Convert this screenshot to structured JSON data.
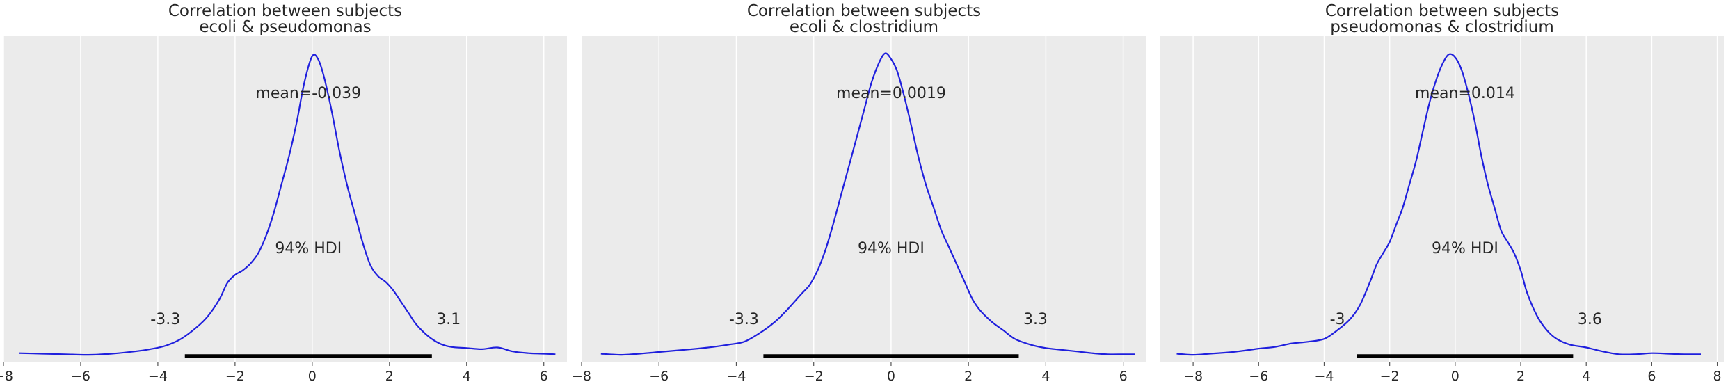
{
  "chart_data": [
    {
      "type": "density",
      "title_lines": [
        "Correlation between subjects",
        "ecoli & pseudomonas"
      ],
      "xlim": [
        -8.0,
        6.6
      ],
      "ylim": [
        -0.01,
        0.56
      ],
      "xticks": [
        -8,
        -6,
        -4,
        -2,
        0,
        2,
        4,
        6
      ],
      "xtick_labels": [
        "−8",
        "−6",
        "−4",
        "−2",
        "0",
        "2",
        "4",
        "6"
      ],
      "grid": true,
      "mean_label": "mean=-0.039",
      "hdi_label": "94% HDI",
      "hdi": [
        -3.3,
        3.1
      ],
      "hdi_low_label": "-3.3",
      "hdi_high_label": "3.1",
      "line_color": "#1f1fdd",
      "density": {
        "x": [
          -7.6,
          -7.0,
          -6.4,
          -5.8,
          -5.2,
          -4.6,
          -4.2,
          -3.8,
          -3.4,
          -3.0,
          -2.7,
          -2.4,
          -2.2,
          -2.0,
          -1.8,
          -1.6,
          -1.4,
          -1.2,
          -1.0,
          -0.8,
          -0.6,
          -0.4,
          -0.2,
          0.0,
          0.15,
          0.3,
          0.5,
          0.7,
          0.9,
          1.1,
          1.3,
          1.5,
          1.7,
          1.9,
          2.1,
          2.3,
          2.5,
          2.7,
          3.0,
          3.3,
          3.6,
          4.0,
          4.4,
          4.8,
          5.2,
          5.6,
          6.0,
          6.3
        ],
        "y": [
          0.005,
          0.004,
          0.003,
          0.002,
          0.004,
          0.008,
          0.012,
          0.018,
          0.03,
          0.05,
          0.07,
          0.1,
          0.128,
          0.142,
          0.15,
          0.162,
          0.18,
          0.21,
          0.25,
          0.3,
          0.35,
          0.41,
          0.48,
          0.525,
          0.52,
          0.49,
          0.43,
          0.36,
          0.3,
          0.25,
          0.2,
          0.16,
          0.14,
          0.13,
          0.115,
          0.095,
          0.075,
          0.055,
          0.035,
          0.022,
          0.016,
          0.014,
          0.012,
          0.015,
          0.008,
          0.005,
          0.004,
          0.003
        ]
      }
    },
    {
      "type": "density",
      "title_lines": [
        "Correlation between subjects",
        "ecoli & clostridium"
      ],
      "xlim": [
        -8.0,
        6.6
      ],
      "ylim": [
        -0.01,
        0.56
      ],
      "xticks": [
        -8,
        -6,
        -4,
        -2,
        0,
        2,
        4,
        6
      ],
      "xtick_labels": [
        "−8",
        "−6",
        "−4",
        "−2",
        "0",
        "2",
        "4",
        "6"
      ],
      "grid": true,
      "mean_label": "mean=0.0019",
      "hdi_label": "94% HDI",
      "hdi": [
        -3.3,
        3.3
      ],
      "hdi_low_label": "-3.3",
      "hdi_high_label": "3.3",
      "line_color": "#1f1fdd",
      "density": {
        "x": [
          -7.5,
          -7.0,
          -6.5,
          -6.0,
          -5.5,
          -5.0,
          -4.6,
          -4.2,
          -3.8,
          -3.4,
          -3.0,
          -2.7,
          -2.5,
          -2.3,
          -2.1,
          -1.9,
          -1.7,
          -1.5,
          -1.3,
          -1.1,
          -0.9,
          -0.7,
          -0.5,
          -0.3,
          -0.15,
          0.0,
          0.15,
          0.3,
          0.5,
          0.7,
          0.9,
          1.1,
          1.3,
          1.5,
          1.7,
          1.9,
          2.1,
          2.3,
          2.6,
          2.9,
          3.2,
          3.6,
          4.0,
          4.4,
          4.8,
          5.2,
          5.6,
          6.0,
          6.3
        ],
        "y": [
          0.004,
          0.002,
          0.004,
          0.007,
          0.01,
          0.013,
          0.016,
          0.02,
          0.025,
          0.04,
          0.06,
          0.08,
          0.095,
          0.11,
          0.125,
          0.15,
          0.185,
          0.23,
          0.28,
          0.33,
          0.38,
          0.43,
          0.48,
          0.515,
          0.53,
          0.52,
          0.5,
          0.465,
          0.41,
          0.35,
          0.3,
          0.26,
          0.22,
          0.19,
          0.16,
          0.13,
          0.1,
          0.08,
          0.06,
          0.045,
          0.03,
          0.02,
          0.014,
          0.011,
          0.008,
          0.005,
          0.003,
          0.003,
          0.003
        ]
      }
    },
    {
      "type": "density",
      "title_lines": [
        "Correlation between subjects",
        "pseudomonas & clostridium"
      ],
      "xlim": [
        -9.0,
        8.2
      ],
      "ylim": [
        -0.01,
        0.56
      ],
      "xticks": [
        -8,
        -6,
        -4,
        -2,
        0,
        2,
        4,
        6,
        8
      ],
      "xtick_labels": [
        "−8",
        "−6",
        "−4",
        "−2",
        "0",
        "2",
        "4",
        "6",
        "8"
      ],
      "grid": true,
      "mean_label": "mean=0.014",
      "hdi_label": "94% HDI",
      "hdi": [
        -3.0,
        3.6
      ],
      "hdi_low_label": "-3",
      "hdi_high_label": "3.6",
      "line_color": "#1f1fdd",
      "density": {
        "x": [
          -8.5,
          -8.0,
          -7.5,
          -7.0,
          -6.5,
          -6.0,
          -5.5,
          -5.0,
          -4.5,
          -4.0,
          -3.6,
          -3.2,
          -2.9,
          -2.6,
          -2.4,
          -2.2,
          -2.0,
          -1.8,
          -1.6,
          -1.4,
          -1.2,
          -1.0,
          -0.8,
          -0.6,
          -0.4,
          -0.2,
          0.0,
          0.2,
          0.4,
          0.6,
          0.8,
          1.0,
          1.2,
          1.4,
          1.6,
          1.8,
          2.0,
          2.2,
          2.5,
          2.8,
          3.1,
          3.5,
          4.0,
          4.5,
          5.0,
          5.5,
          6.0,
          6.5,
          7.0,
          7.5
        ],
        "y": [
          0.004,
          0.002,
          0.004,
          0.006,
          0.009,
          0.013,
          0.016,
          0.022,
          0.025,
          0.03,
          0.045,
          0.065,
          0.09,
          0.13,
          0.16,
          0.18,
          0.2,
          0.23,
          0.26,
          0.3,
          0.34,
          0.39,
          0.44,
          0.48,
          0.51,
          0.528,
          0.523,
          0.5,
          0.46,
          0.41,
          0.35,
          0.3,
          0.26,
          0.22,
          0.2,
          0.18,
          0.15,
          0.11,
          0.07,
          0.045,
          0.03,
          0.02,
          0.015,
          0.008,
          0.003,
          0.003,
          0.005,
          0.004,
          0.003,
          0.003
        ]
      }
    }
  ]
}
